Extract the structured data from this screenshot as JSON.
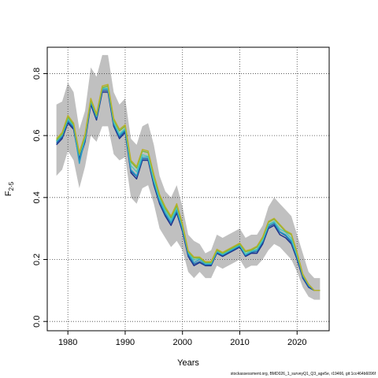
{
  "chart_data": {
    "type": "line",
    "xlabel": "Years",
    "ylabel_main": "F",
    "ylabel_sub": "2-5",
    "xlim": [
      1976.4,
      2025.6
    ],
    "ylim": [
      -0.03,
      0.885
    ],
    "xticks": [
      1980,
      1990,
      2000,
      2010,
      2020
    ],
    "yticks": [
      0.0,
      0.2,
      0.4,
      0.6,
      0.8
    ],
    "xtick_labels": [
      "1980",
      "1990",
      "2000",
      "2010",
      "2020"
    ],
    "ytick_labels": [
      "0.0",
      "0.2",
      "0.4",
      "0.6",
      "0.8"
    ],
    "grid": true,
    "source_note": "stockassessment.org, BMD026_1_surveyQ1_Q3_age5e, r19466, git:1cc464b6096f",
    "x": [
      1978,
      1979,
      1980,
      1981,
      1982,
      1983,
      1984,
      1985,
      1986,
      1987,
      1988,
      1989,
      1990,
      1991,
      1992,
      1993,
      1994,
      1995,
      1996,
      1997,
      1998,
      1999,
      2000,
      2001,
      2002,
      2003,
      2004,
      2005,
      2006,
      2007,
      2008,
      2009,
      2010,
      2011,
      2012,
      2013,
      2014,
      2015,
      2016,
      2017,
      2018,
      2019,
      2020,
      2021,
      2022,
      2023,
      2024
    ],
    "band": {
      "color": "#c0c0c0",
      "upper": [
        0.7,
        0.71,
        0.77,
        0.74,
        0.62,
        0.68,
        0.82,
        0.79,
        0.86,
        0.86,
        0.74,
        0.7,
        0.72,
        0.59,
        0.57,
        0.63,
        0.64,
        0.57,
        0.47,
        0.42,
        0.4,
        0.44,
        0.37,
        0.28,
        0.26,
        0.25,
        0.22,
        0.23,
        0.28,
        0.27,
        0.28,
        0.29,
        0.3,
        0.27,
        0.28,
        0.28,
        0.31,
        0.37,
        0.4,
        0.38,
        0.36,
        0.34,
        0.28,
        0.22,
        0.16,
        0.14,
        0.14
      ],
      "lower": [
        0.47,
        0.49,
        0.55,
        0.52,
        0.43,
        0.5,
        0.6,
        0.58,
        0.63,
        0.63,
        0.54,
        0.52,
        0.53,
        0.4,
        0.38,
        0.43,
        0.44,
        0.38,
        0.3,
        0.27,
        0.24,
        0.26,
        0.23,
        0.16,
        0.14,
        0.16,
        0.14,
        0.14,
        0.18,
        0.17,
        0.18,
        0.19,
        0.2,
        0.17,
        0.18,
        0.18,
        0.2,
        0.23,
        0.25,
        0.24,
        0.22,
        0.2,
        0.16,
        0.11,
        0.08,
        0.07,
        0.07
      ]
    },
    "series": [
      {
        "color": "#1b2f8a",
        "values": [
          0.57,
          0.59,
          0.64,
          0.62,
          0.52,
          0.58,
          0.7,
          0.65,
          0.74,
          0.74,
          0.63,
          0.59,
          0.61,
          0.48,
          0.46,
          0.52,
          0.52,
          0.44,
          0.38,
          0.34,
          0.31,
          0.35,
          0.29,
          0.21,
          0.18,
          0.19,
          0.18,
          0.18,
          0.22,
          0.21,
          0.22,
          0.23,
          0.24,
          0.21,
          0.22,
          0.22,
          0.25,
          0.3,
          0.31,
          0.28,
          0.27,
          0.25,
          0.2,
          0.14,
          0.11,
          0.1,
          0.1
        ]
      },
      {
        "color": "#1d5fa8",
        "values": [
          0.575,
          0.595,
          0.645,
          0.625,
          0.525,
          0.585,
          0.705,
          0.655,
          0.745,
          0.745,
          0.635,
          0.595,
          0.615,
          0.485,
          0.468,
          0.525,
          0.525,
          0.448,
          0.385,
          0.345,
          0.318,
          0.355,
          0.295,
          0.213,
          0.185,
          0.193,
          0.182,
          0.183,
          0.222,
          0.213,
          0.223,
          0.233,
          0.243,
          0.213,
          0.223,
          0.225,
          0.255,
          0.305,
          0.315,
          0.288,
          0.277,
          0.255,
          0.205,
          0.143,
          0.112,
          0.1,
          0.1
        ]
      },
      {
        "color": "#2aa0c8",
        "values": [
          0.58,
          0.6,
          0.65,
          0.63,
          0.51,
          0.59,
          0.71,
          0.66,
          0.75,
          0.75,
          0.64,
          0.6,
          0.62,
          0.49,
          0.47,
          0.53,
          0.53,
          0.45,
          0.39,
          0.35,
          0.32,
          0.36,
          0.3,
          0.22,
          0.19,
          0.2,
          0.185,
          0.185,
          0.225,
          0.215,
          0.225,
          0.235,
          0.245,
          0.215,
          0.225,
          0.23,
          0.26,
          0.31,
          0.32,
          0.29,
          0.28,
          0.26,
          0.21,
          0.15,
          0.12,
          0.1,
          0.1
        ]
      },
      {
        "color": "#4fc8b8",
        "values": [
          0.583,
          0.603,
          0.655,
          0.633,
          0.538,
          0.593,
          0.713,
          0.663,
          0.753,
          0.753,
          0.643,
          0.605,
          0.623,
          0.503,
          0.483,
          0.538,
          0.533,
          0.458,
          0.398,
          0.358,
          0.328,
          0.368,
          0.305,
          0.223,
          0.198,
          0.203,
          0.188,
          0.188,
          0.228,
          0.218,
          0.228,
          0.238,
          0.248,
          0.218,
          0.228,
          0.233,
          0.263,
          0.313,
          0.323,
          0.298,
          0.288,
          0.268,
          0.213,
          0.148,
          0.118,
          0.1,
          0.1
        ]
      },
      {
        "color": "#7ab83a",
        "values": [
          0.585,
          0.605,
          0.66,
          0.635,
          0.54,
          0.6,
          0.715,
          0.665,
          0.755,
          0.76,
          0.65,
          0.615,
          0.63,
          0.515,
          0.495,
          0.55,
          0.545,
          0.47,
          0.405,
          0.365,
          0.335,
          0.375,
          0.31,
          0.225,
          0.205,
          0.205,
          0.19,
          0.19,
          0.23,
          0.22,
          0.23,
          0.24,
          0.25,
          0.225,
          0.23,
          0.24,
          0.27,
          0.32,
          0.33,
          0.31,
          0.29,
          0.28,
          0.22,
          0.15,
          0.12,
          0.1,
          0.1
        ]
      },
      {
        "color": "#b8b02a",
        "values": [
          0.59,
          0.61,
          0.665,
          0.64,
          0.545,
          0.605,
          0.72,
          0.67,
          0.76,
          0.765,
          0.655,
          0.62,
          0.635,
          0.52,
          0.5,
          0.555,
          0.55,
          0.475,
          0.41,
          0.37,
          0.34,
          0.38,
          0.315,
          0.228,
          0.208,
          0.208,
          0.193,
          0.193,
          0.233,
          0.223,
          0.233,
          0.243,
          0.253,
          0.228,
          0.233,
          0.243,
          0.273,
          0.323,
          0.333,
          0.313,
          0.293,
          0.283,
          0.223,
          0.153,
          0.12,
          0.1,
          0.1
        ]
      }
    ]
  }
}
